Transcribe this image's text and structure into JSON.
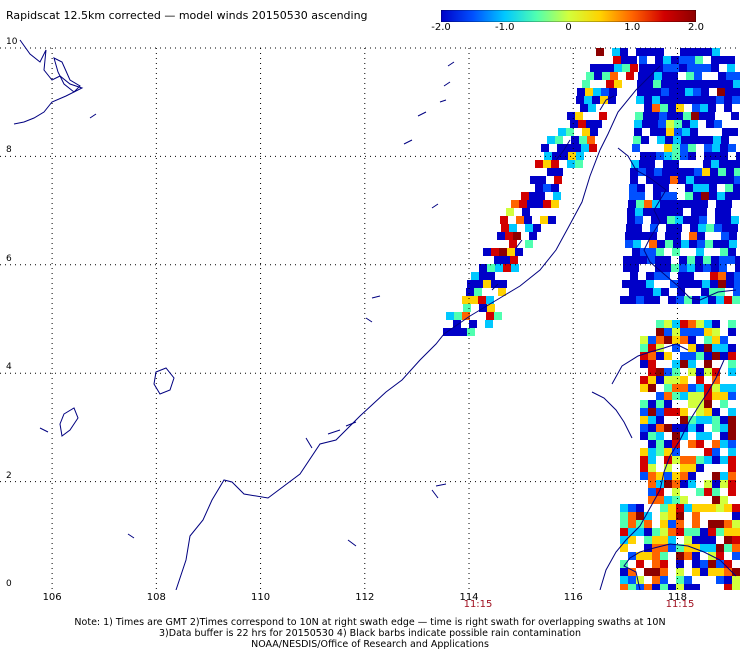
{
  "title": "Rapidscat 12.5km corrected — model winds 20150530 ascending",
  "colorbar": {
    "ticks": [
      "-2.0",
      "-1.0",
      "0",
      "1.0",
      "2.0"
    ],
    "tick_values": [
      -2.0,
      -1.0,
      0,
      1.0,
      2.0
    ],
    "range": [
      -2.0,
      2.0
    ],
    "colors": [
      "#0000c8",
      "#0050ff",
      "#00c8ff",
      "#50ffb0",
      "#d2ff3c",
      "#ffd200",
      "#ff6400",
      "#d20000",
      "#8c0000"
    ]
  },
  "axes": {
    "lat_labels": [
      "10",
      "8",
      "6",
      "4",
      "2",
      "0"
    ],
    "lat_values": [
      10,
      8,
      6,
      4,
      2,
      0
    ],
    "lon_labels": [
      "106",
      "108",
      "110",
      "112",
      "114",
      "116",
      "118"
    ],
    "lon_values": [
      106,
      108,
      110,
      112,
      114,
      116,
      118
    ],
    "lon_range": [
      105,
      119.2
    ],
    "lat_range": [
      0,
      10
    ]
  },
  "swath_times": [
    "11:15",
    "11:15"
  ],
  "notes": [
    "Note: 1) Times are GMT 2)Times correspond to 10N at right swath edge — time is right swath for overlapping swaths at 10N",
    "3)Data buffer is 22 hrs for 20150530 4) Black barbs indicate possible rain contamination",
    "NOAA/NESDIS/Office of Research and Applications"
  ]
}
